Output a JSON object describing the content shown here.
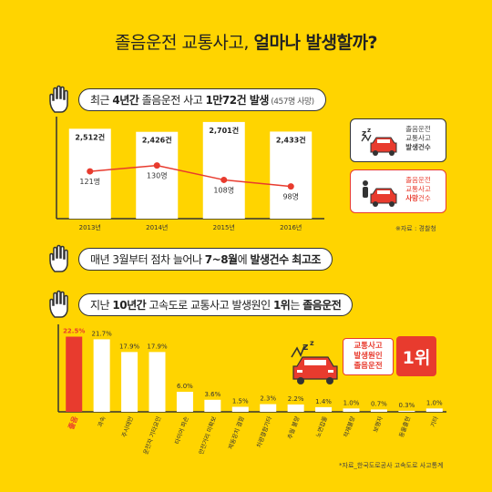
{
  "title": {
    "light": "졸음운전 교통사고, ",
    "bold": "얼마나 발생할까?"
  },
  "section1": {
    "label_pre": "최근 ",
    "label_b1": "4년간",
    "label_mid": " 졸음운전 사고 ",
    "label_b2": "1만72건 발생",
    "label_small": " (457명 사망)"
  },
  "section2": {
    "label_pre": "매년 3월부터 점차 늘어나 ",
    "label_b1": "7~8월",
    "label_mid": "에 ",
    "label_b2": "발생건수 최고조"
  },
  "section3": {
    "label_pre": "지난 ",
    "label_b1": "10년간",
    "label_mid": " 고속도로 교통사고 발생원인 ",
    "label_b2": "1위",
    "label_mid2": "는 ",
    "label_b3": "졸음운전"
  },
  "legend": {
    "box1": {
      "line1": "졸음운전",
      "line2": "교통사고",
      "line3": "발생건수"
    },
    "box2": {
      "line1": "졸음운전",
      "line2": "교통사고",
      "line3_r": "사망",
      "line3_rest": "건수"
    }
  },
  "source1": "※자료 : 경찰청",
  "source2": "*자료_한국도로공사 고속도로 사고통계",
  "badge": {
    "line1": "교통사고",
    "line2": "발생원인",
    "line3": "졸음운전",
    "rank": "1위"
  },
  "colors": {
    "background": "#FFD400",
    "highlight": "#E83B2E",
    "bar": "#FFFFFF",
    "ink": "#222222"
  },
  "chart_data": [
    {
      "type": "bar",
      "categories": [
        "2013년",
        "2014년",
        "2015년",
        "2016년"
      ],
      "series": [
        {
          "name": "졸음운전 교통사고 발생건수",
          "type": "bar",
          "values": [
            2512,
            2426,
            2701,
            2433
          ],
          "labels": [
            "2,512건",
            "2,426건",
            "2,701건",
            "2,433건"
          ]
        },
        {
          "name": "졸음운전 교통사고 사망건수",
          "type": "line",
          "values": [
            121,
            130,
            108,
            98
          ],
          "labels": [
            "121명",
            "130명",
            "108명",
            "98명"
          ]
        }
      ],
      "title": "최근 4년간 졸음운전 사고 1만72건 발생 (457명 사망)",
      "legend_position": "right"
    },
    {
      "type": "bar",
      "categories": [
        "졸음",
        "과속",
        "주시태만",
        "운전자 기타요인",
        "타이어 파손",
        "안전거리 미확보",
        "제동장치 결함",
        "차량결함기타",
        "추월 불량",
        "노면잡물",
        "적재불량",
        "보행자",
        "동물출현",
        "기타"
      ],
      "values": [
        22.5,
        21.7,
        17.9,
        17.9,
        6.0,
        3.6,
        1.5,
        2.3,
        2.2,
        1.4,
        1.0,
        0.7,
        0.3,
        1.0
      ],
      "value_labels": [
        "22.5%",
        "21.7%",
        "17.9%",
        "17.9%",
        "6.0%",
        "3.6%",
        "1.5%",
        "2.3%",
        "2.2%",
        "1.4%",
        "1.0%",
        "0.7%",
        "0.3%",
        "1.0%"
      ],
      "highlight_index": 0,
      "title": "지난 10년간 고속도로 교통사고 발생원인 1위는 졸음운전"
    }
  ]
}
